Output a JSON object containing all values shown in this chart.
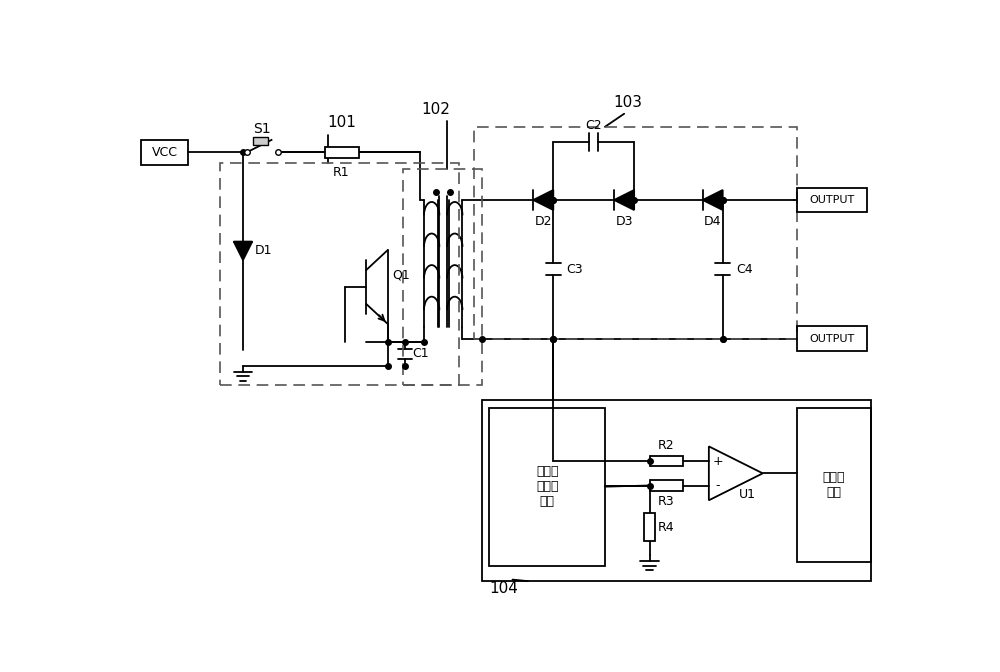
{
  "bg_color": "#ffffff",
  "line_color": "#000000",
  "fig_width": 10.0,
  "fig_height": 6.72,
  "labels": {
    "VCC": "VCC",
    "S1": "S1",
    "101": "101",
    "102": "102",
    "103": "103",
    "104": "104",
    "R1": "R1",
    "R2": "R2",
    "R3": "R3",
    "R4": "R4",
    "C1": "C1",
    "C2": "C2",
    "C3": "C3",
    "C4": "C4",
    "D1": "D1",
    "D2": "D2",
    "D3": "D3",
    "D4": "D4",
    "Q1": "Q1",
    "U1": "U1",
    "OUTPUT": "OUTPUT",
    "relay": "继电器\n模块",
    "storage": "设定电\n压存储\n模块"
  }
}
